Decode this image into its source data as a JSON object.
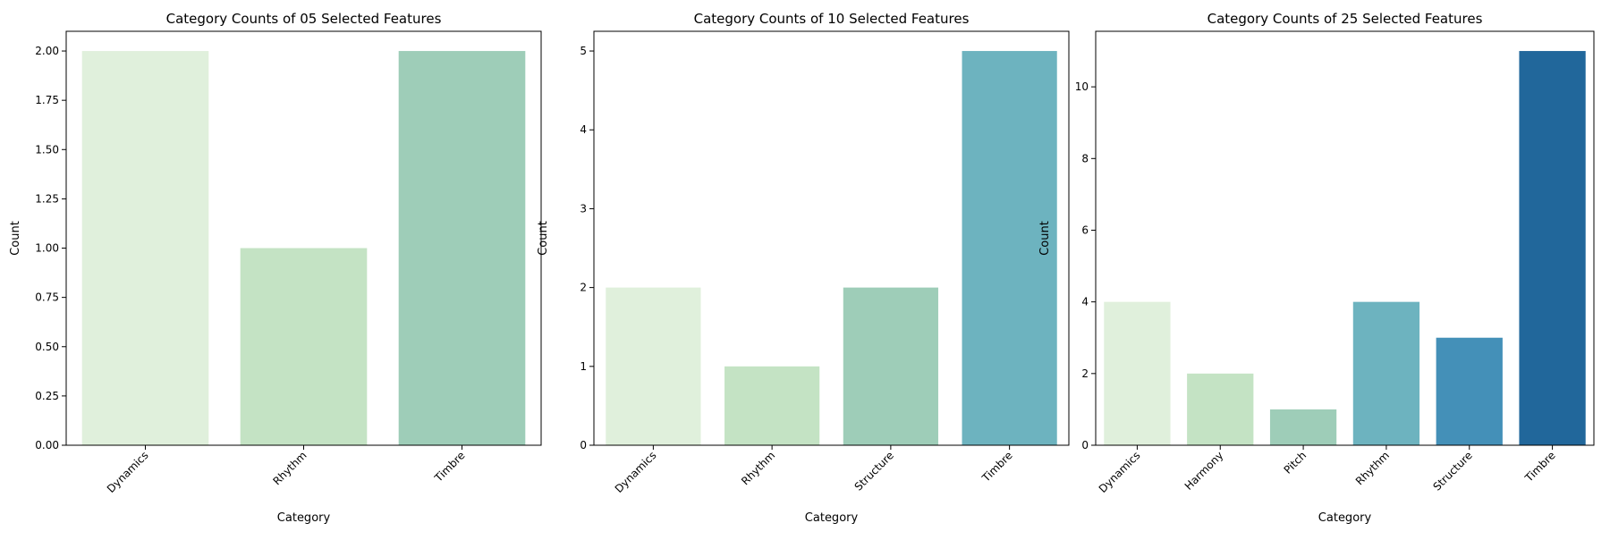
{
  "chart_data": [
    {
      "type": "bar",
      "title": "Category Counts of 05 Selected Features",
      "xlabel": "Category",
      "ylabel": "Count",
      "categories": [
        "Dynamics",
        "Rhythm",
        "Timbre"
      ],
      "values": [
        2,
        1,
        2
      ],
      "colors": [
        "#e0f0dc",
        "#c4e3c4",
        "#9ecdb8"
      ],
      "ylim": [
        0,
        2.1
      ],
      "yticks": [
        0.0,
        0.25,
        0.5,
        0.75,
        1.0,
        1.25,
        1.5,
        1.75,
        2.0
      ],
      "ytick_labels": [
        "0.00",
        "0.25",
        "0.50",
        "0.75",
        "1.00",
        "1.25",
        "1.50",
        "1.75",
        "2.00"
      ],
      "grid": false,
      "legend": "none"
    },
    {
      "type": "bar",
      "title": "Category Counts of 10 Selected Features",
      "xlabel": "Category",
      "ylabel": "Count",
      "categories": [
        "Dynamics",
        "Rhythm",
        "Structure",
        "Timbre"
      ],
      "values": [
        2,
        1,
        2,
        5
      ],
      "colors": [
        "#e0f0dc",
        "#c4e3c4",
        "#9ecdb8",
        "#6db3bf"
      ],
      "ylim": [
        0,
        5.25
      ],
      "yticks": [
        0,
        1,
        2,
        3,
        4,
        5
      ],
      "ytick_labels": [
        "0",
        "1",
        "2",
        "3",
        "4",
        "5"
      ],
      "grid": false,
      "legend": "none"
    },
    {
      "type": "bar",
      "title": "Category Counts of 25 Selected Features",
      "xlabel": "Category",
      "ylabel": "Count",
      "categories": [
        "Dynamics",
        "Harmony",
        "Pitch",
        "Rhythm",
        "Structure",
        "Timbre"
      ],
      "values": [
        4,
        2,
        1,
        4,
        3,
        11
      ],
      "colors": [
        "#e0f0dc",
        "#c4e3c4",
        "#9ecdb8",
        "#6db3bf",
        "#4490b8",
        "#21679b"
      ],
      "ylim": [
        0,
        11.55
      ],
      "yticks": [
        0,
        2,
        4,
        6,
        8,
        10
      ],
      "ytick_labels": [
        "0",
        "2",
        "4",
        "6",
        "8",
        "10"
      ],
      "grid": false,
      "legend": "none"
    }
  ]
}
